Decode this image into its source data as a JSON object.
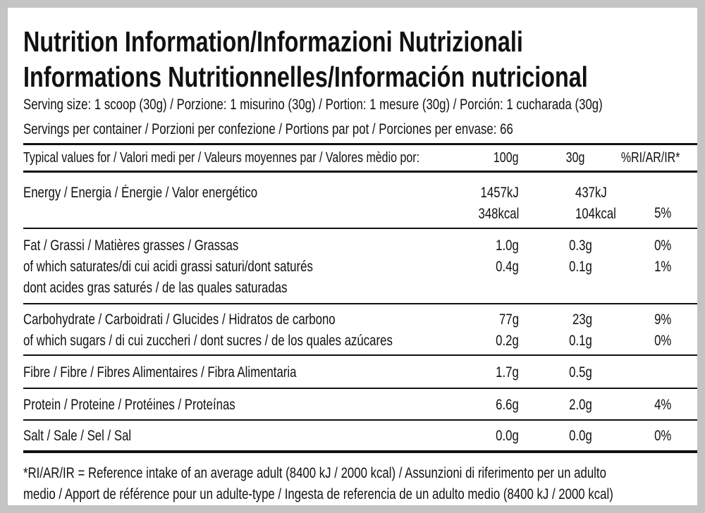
{
  "header": {
    "title_lines": [
      "Nutrition Information/Informazioni Nutrizionali",
      "Informations Nutritionnelles/Información nutricional"
    ],
    "serving_size": "Serving size: 1 scoop (30g) / Porzione: 1 misurino (30g) / Portion: 1 mesure (30g) / Porción: 1 cucharada (30g)",
    "servings_per_container": "Servings per container / Porzioni per confezione / Portions par pot / Porciones per envase: 66"
  },
  "table": {
    "columns": [
      "Typical values for / Valori medi per / Valeurs moyennes par / Valores mèdio por:",
      "100g",
      "30g",
      "%RI/AR/IR*"
    ],
    "groups": [
      {
        "labels": [
          "Energy / Energia / Énergie / Valor energético"
        ],
        "rows": [
          {
            "per_100g": "1457kJ",
            "per_30g": "437kJ"
          },
          {
            "per_100g": "348kcal",
            "per_30g": "104kcal"
          }
        ],
        "ri": "5%"
      },
      {
        "labels": [
          "Fat / Grassi / Matières grasses / Grassas",
          "of which saturates/di cui acidi grassi saturi/dont saturés",
          "dont acides gras saturés / de las quales saturadas"
        ],
        "rows": [
          {
            "per_100g": "1.0g",
            "per_30g": "0.3g",
            "ri": "0%"
          },
          {
            "per_100g": "0.4g",
            "per_30g": "0.1g",
            "ri": "1%"
          }
        ]
      },
      {
        "labels": [
          "Carbohydrate / Carboidrati / Glucides / Hidratos de carbono",
          "of which sugars / di cui zuccheri / dont sucres / de los quales azúcares"
        ],
        "rows": [
          {
            "per_100g": "77g",
            "per_30g": "23g",
            "ri": "9%"
          },
          {
            "per_100g": "0.2g",
            "per_30g": "0.1g",
            "ri": "0%"
          }
        ]
      },
      {
        "labels": [
          "Fibre / Fibre / Fibres Alimentaires / Fibra Alimentaria"
        ],
        "rows": [
          {
            "per_100g": "1.7g",
            "per_30g": "0.5g"
          }
        ]
      },
      {
        "labels": [
          "Protein / Proteine / Protéines / Proteínas"
        ],
        "rows": [
          {
            "per_100g": "6.6g",
            "per_30g": "2.0g",
            "ri": "4%"
          }
        ]
      },
      {
        "labels": [
          "Salt / Sale / Sel / Sal"
        ],
        "rows": [
          {
            "per_100g": "0.0g",
            "per_30g": "0.0g",
            "ri": "0%"
          }
        ]
      }
    ]
  },
  "footnote": [
    "*RI/AR/IR = Reference intake of an average adult (8400 kJ / 2000 kcal)  / Assunzioni di riferimento per un adulto",
    "medio / Apport de référence pour un adulte-type / Ingesta de referencia de un adulto medio (8400 kJ / 2000 kcal)"
  ]
}
